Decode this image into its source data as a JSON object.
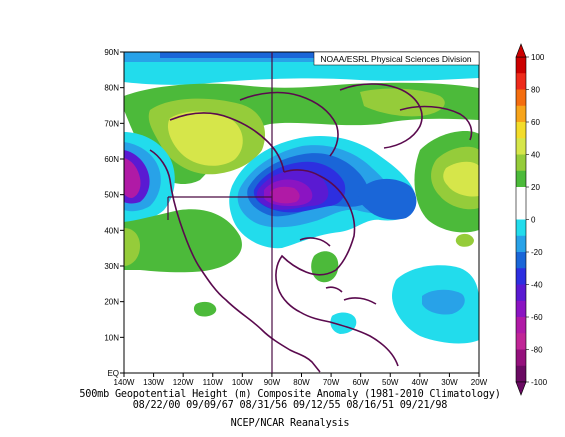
{
  "credit": "NOAA/ESRL Physical Sciences Division",
  "caption": {
    "line1": "500mb Geopotential Height (m) Composite Anomaly (1981-2010 Climatology)",
    "line2": "08/22/00 09/09/67 08/31/56 09/12/55 08/16/51 09/21/98",
    "line3": "NCEP/NCAR Reanalysis"
  },
  "axes": {
    "x_ticks": [
      "140W",
      "130W",
      "120W",
      "110W",
      "100W",
      "90W",
      "80W",
      "70W",
      "60W",
      "50W",
      "40W",
      "30W",
      "20W"
    ],
    "y_ticks": [
      "EQ",
      "10N",
      "20N",
      "30N",
      "40N",
      "50N",
      "60N",
      "70N",
      "80N",
      "90N"
    ],
    "lon_range": [
      -140,
      -20
    ],
    "lat_range": [
      0,
      90
    ]
  },
  "colorbar": {
    "levels": [
      "100",
      "80",
      "60",
      "40",
      "20",
      "0",
      "-20",
      "-40",
      "-60",
      "-80",
      "-100"
    ],
    "colors": [
      "#cc0000",
      "#ee2a1a",
      "#f46d0f",
      "#f7a41a",
      "#f3dc2a",
      "#d6e64a",
      "#95cc3a",
      "#4cba3a",
      "#ffffff",
      "#ffffff",
      "#22dcec",
      "#28a2e8",
      "#1a66d8",
      "#2d2fe0",
      "#5a1ad2",
      "#8b14c2",
      "#b01aa6",
      "#c02596",
      "#94107c",
      "#6a0a62"
    ]
  }
}
